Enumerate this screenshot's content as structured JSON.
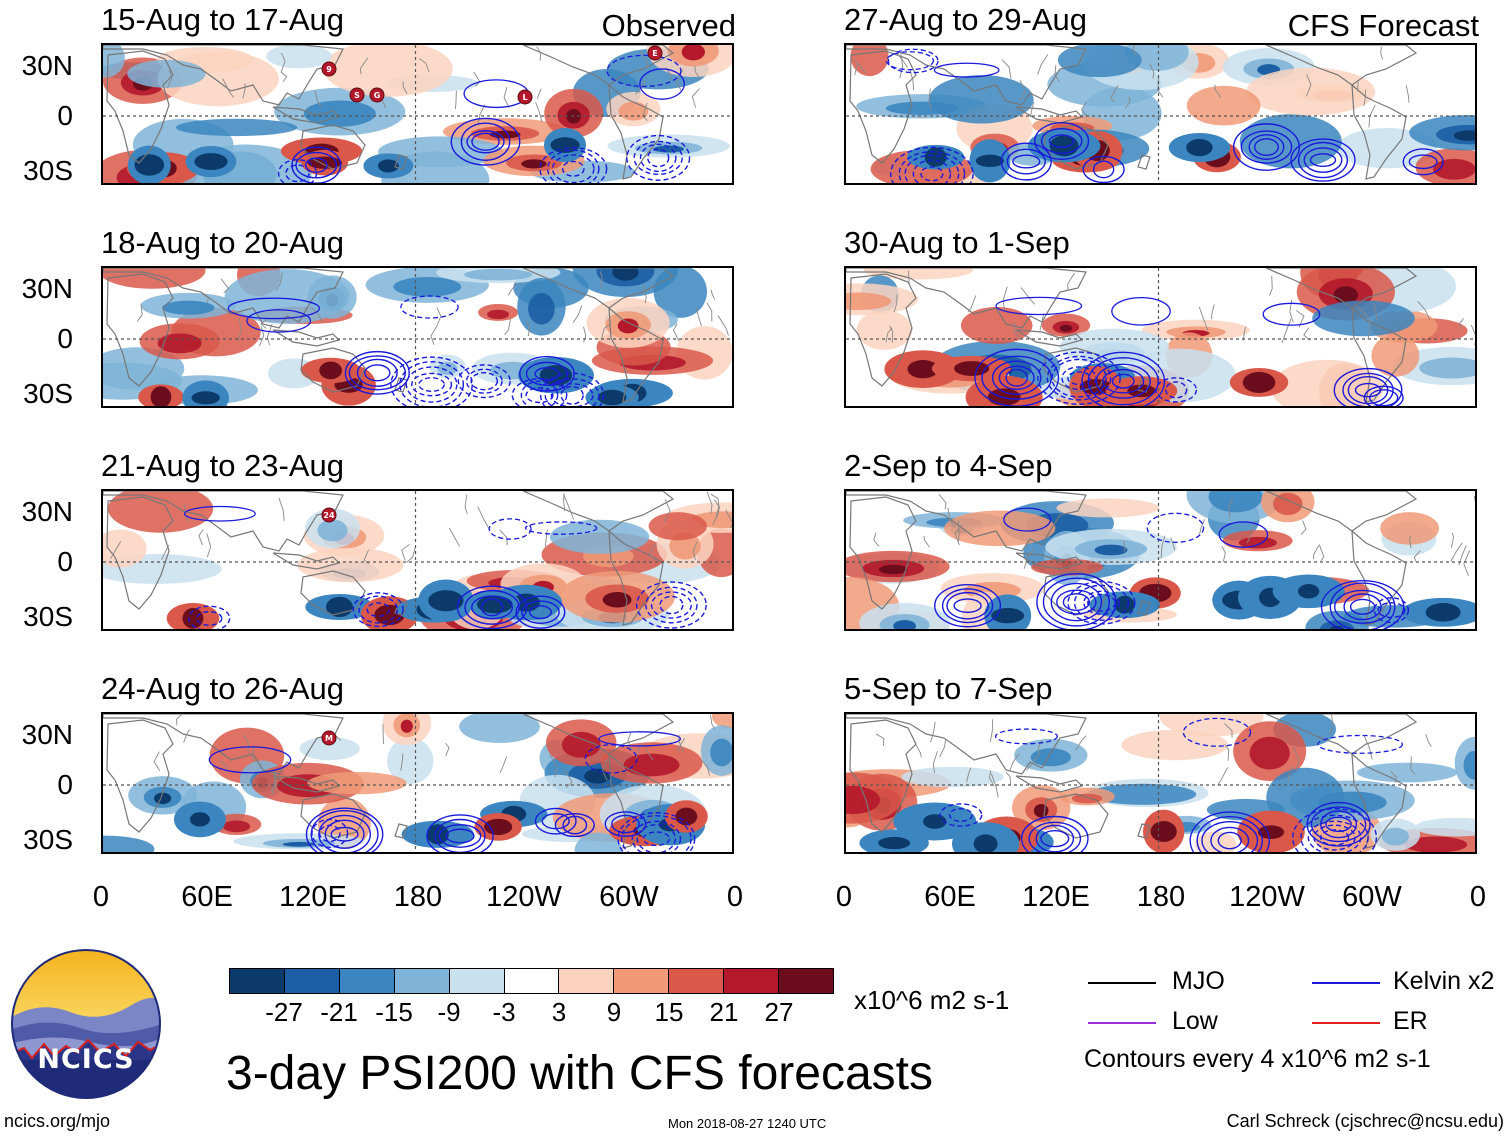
{
  "figure": {
    "title": "3-day PSI200 with CFS forecasts",
    "left_header": "Observed",
    "right_header": "CFS Forecast",
    "lat_labels": [
      "30N",
      "0",
      "30S"
    ],
    "lon_labels": [
      "0",
      "60E",
      "120E",
      "180",
      "120W",
      "60W",
      "0"
    ]
  },
  "panels": [
    {
      "title": "15-Aug to 17-Aug",
      "storms": [
        "9",
        "S",
        "G",
        "L",
        "E"
      ]
    },
    {
      "title": "18-Aug to 20-Aug",
      "storms": []
    },
    {
      "title": "21-Aug to 23-Aug",
      "storms": [
        "24"
      ]
    },
    {
      "title": "24-Aug to 26-Aug",
      "storms": [
        "M"
      ]
    },
    {
      "title": "27-Aug to 29-Aug",
      "storms": []
    },
    {
      "title": "30-Aug to 1-Sep",
      "storms": []
    },
    {
      "title": "2-Sep to 4-Sep",
      "storms": []
    },
    {
      "title": "5-Sep to 7-Sep",
      "storms": []
    }
  ],
  "colorbar": {
    "labels": [
      "-27",
      "-21",
      "-15",
      "-9",
      "-3",
      "3",
      "9",
      "15",
      "21",
      "27"
    ],
    "colors": [
      "#0b3a6b",
      "#1c5fa4",
      "#3b86c0",
      "#7fb4d8",
      "#c9e0ef",
      "#ffffff",
      "#fbd3bf",
      "#f09a78",
      "#d9584a",
      "#b3182b",
      "#6b0d1c"
    ],
    "units": "x10^6 m2 s-1"
  },
  "legend": {
    "items": [
      {
        "label": "MJO",
        "color": "#000000"
      },
      {
        "label": "Kelvin x2",
        "color": "#1a1adb"
      },
      {
        "label": "Low",
        "color": "#9b30d9"
      },
      {
        "label": "ER",
        "color": "#e01f1f"
      }
    ],
    "contour_note": "Contours every 4 x10^6 m2 s-1"
  },
  "logo": {
    "text": "NCICS"
  },
  "footer": {
    "website": "ncics.org/mjo",
    "timestamp": "Mon 2018-08-27 1240 UTC",
    "author": "Carl Schreck (cjschrec@ncsu.edu)"
  }
}
